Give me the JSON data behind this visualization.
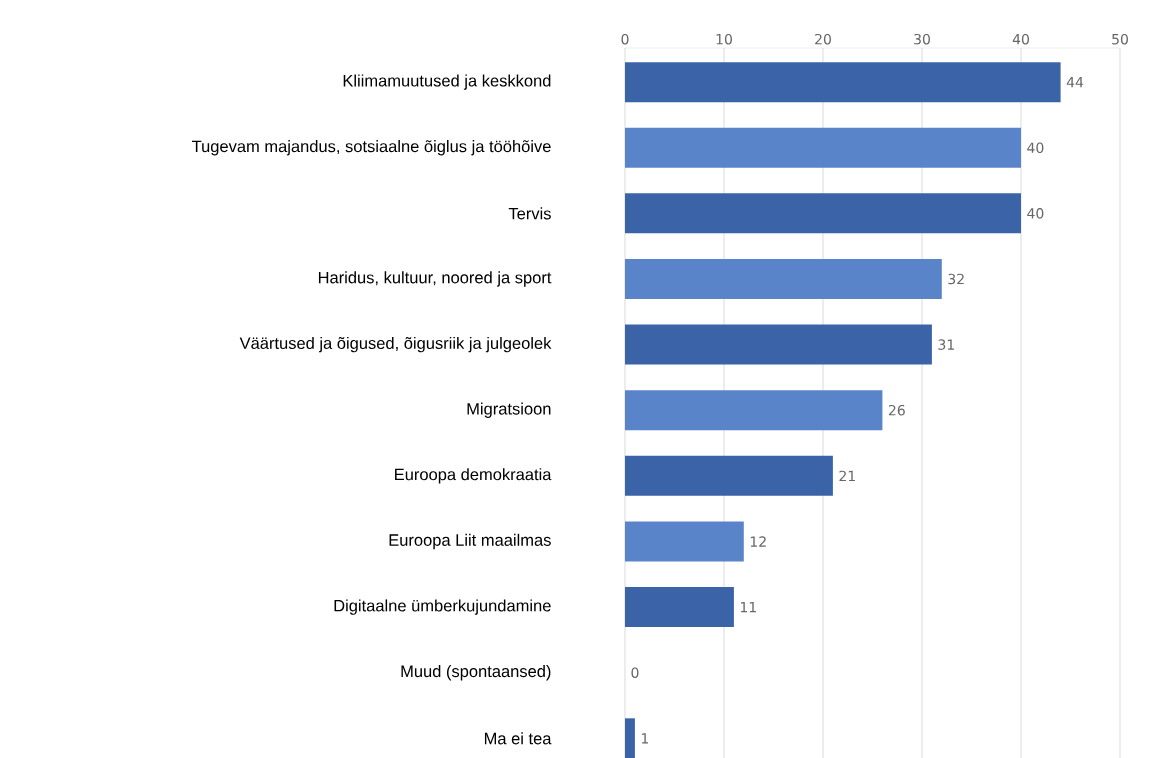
{
  "chart_data": {
    "type": "bar",
    "orientation": "horizontal",
    "categories": [
      "Kliimamuutused ja keskkond",
      "Tugevam majandus, sotsiaalne õiglus ja tööhõive",
      "Tervis",
      "Haridus, kultuur, noored ja sport",
      "Väärtused ja õigused, õigusriik ja julgeolek",
      "Migratsioon",
      "Euroopa demokraatia",
      "Euroopa Liit maailmas",
      "Digitaalne ümberkujundamine",
      "Muud (spontaansed)",
      "Ma ei tea"
    ],
    "values": [
      44,
      40,
      40,
      32,
      31,
      26,
      21,
      12,
      11,
      0,
      1
    ],
    "colors": [
      "#3a63a8",
      "#5a84c9",
      "#3a63a8",
      "#5a84c9",
      "#3a63a8",
      "#5a84c9",
      "#3a63a8",
      "#5a84c9",
      "#3a63a8",
      "#5a84c9",
      "#3a63a8"
    ],
    "xlim": [
      0,
      50
    ],
    "xticks": [
      0,
      10,
      20,
      30,
      40,
      50
    ],
    "grid": "x",
    "data_labels": true
  }
}
